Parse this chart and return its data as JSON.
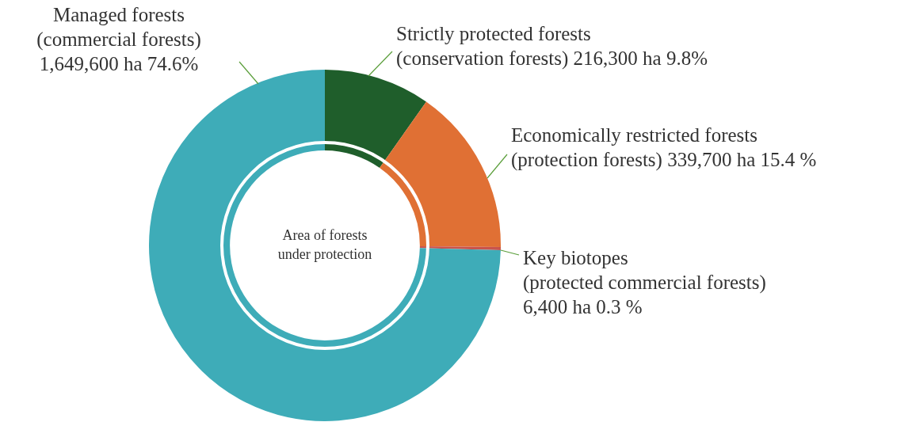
{
  "chart_data": {
    "type": "donut",
    "title": "Area of forests\nunder protection",
    "categories": [
      "Strictly protected forests\n(conservation forests)",
      "Economically restricted forests\n(protection forests)",
      "Key biotopes\n(protected commercial forests)",
      "Managed forests\n(commercial forests)"
    ],
    "values": [
      216300,
      339700,
      6400,
      1649600
    ],
    "value_labels": [
      "216,300 ha 9.8%",
      "339,700 ha 15.4 %",
      "6,400 ha 0.3 %",
      "1,649,600 ha 74.6%"
    ],
    "colors": [
      "#1f5e2b",
      "#e07034",
      "#c9544c",
      "#3eacb8"
    ],
    "legend": false
  }
}
